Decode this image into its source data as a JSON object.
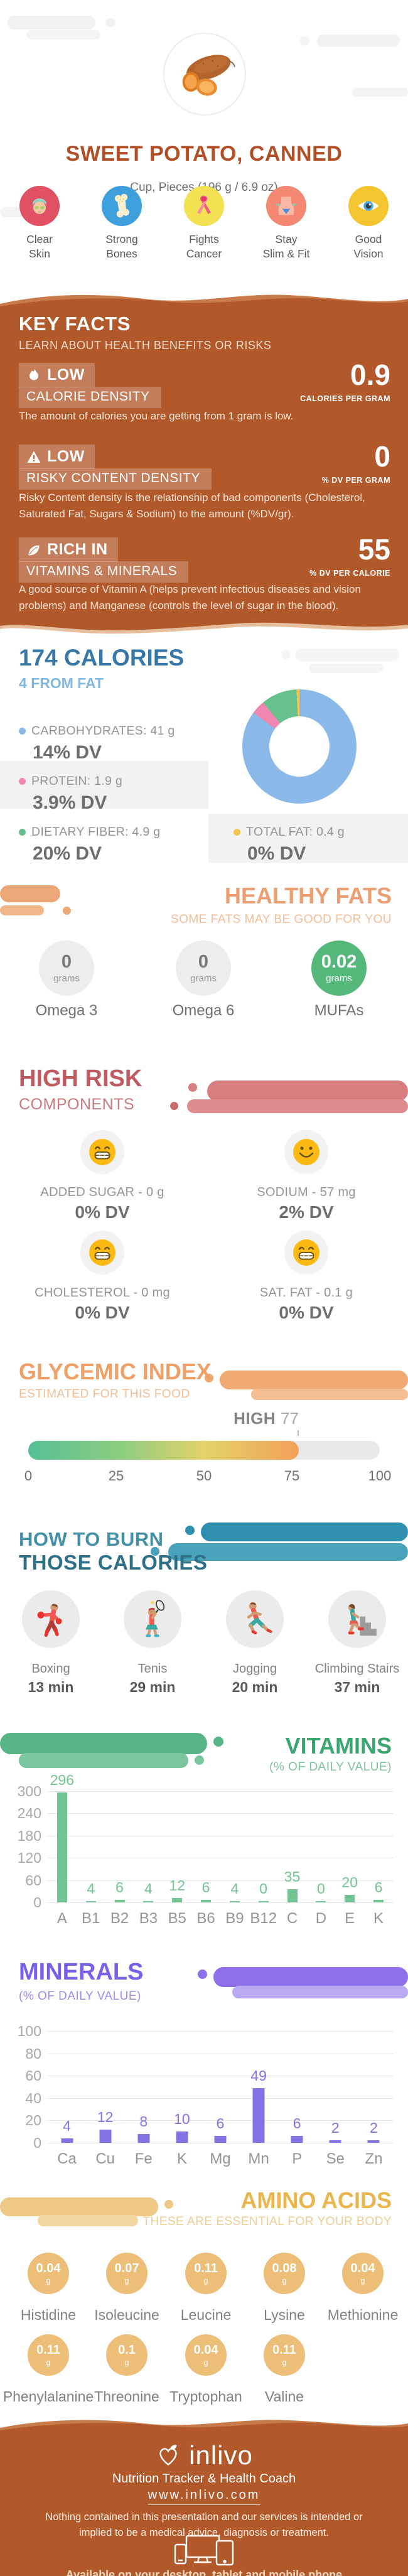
{
  "colors": {
    "brand_brown": "#b2592c",
    "brown_light": "#c87a4a",
    "title_brown": "#b34f27",
    "calories_blue": "#3878a8",
    "calories_blue_light": "#82b9e0",
    "carbs_blue": "#8ab8e8",
    "protein_pink": "#ef87b0",
    "fiber_green": "#67c18c",
    "fat_yellow": "#f3c64f",
    "healthy_fats_salmon": "#eb9e72",
    "mufa_green": "#56b77a",
    "high_risk_rose": "#bf5a62",
    "smiley_yellow": "#fdb913",
    "glycemic_orange": "#efa067",
    "burn_teal": "#2e7086",
    "vitamins_green": "#3aa771",
    "vitamins_bar_green": "#72c493",
    "minerals_purple": "#7a5fe8",
    "minerals_bar_purple": "#8273e4",
    "amino_gold": "#eab54d",
    "amino_bubble_gold": "#ecbe77"
  },
  "header": {
    "title": "SWEET POTATO, CANNED",
    "subtitle": "Cup, Pieces (196 g / 6.9 oz)",
    "benefits": [
      {
        "icon": "face-icon",
        "circle_color": "#e05263",
        "lines": [
          "Clear",
          "Skin"
        ]
      },
      {
        "icon": "bone-icon",
        "circle_color": "#3d9fdc",
        "lines": [
          "Strong",
          "Bones"
        ]
      },
      {
        "icon": "ribbon-icon",
        "circle_color": "#f2e153",
        "lines": [
          "Fights",
          "Cancer"
        ]
      },
      {
        "icon": "waist-icon",
        "circle_color": "#f48873",
        "lines": [
          "Stay",
          "Slim & Fit"
        ]
      },
      {
        "icon": "eye-icon",
        "circle_color": "#f5c531",
        "lines": [
          "Good",
          "Vision"
        ]
      }
    ]
  },
  "key_facts": {
    "title": "KEY FACTS",
    "subtitle": "LEARN ABOUT HEALTH BENEFITS OR RISKS",
    "facts": [
      {
        "icon": "flame-icon",
        "badge": "LOW",
        "category": "CALORIE DENSITY",
        "value": "0.9",
        "unit": "CALORIES PER GRAM",
        "description": "The amount of calories you are getting from 1 gram is low."
      },
      {
        "icon": "warning-icon",
        "badge": "LOW",
        "category": "RISKY CONTENT DENSITY",
        "value": "0",
        "unit": "% DV PER GRAM",
        "description": "Risky Content density is the relationship of bad components (Cholesterol, Saturated Fat, Sugars & Sodium) to the amount (%DV/gr)."
      },
      {
        "icon": "leaf-icon",
        "badge": "RICH IN",
        "category": "VITAMINS & MINERALS",
        "value": "55",
        "unit": "% DV PER CALORIE",
        "description": "A good source of Vitamin A (helps prevent infectious diseases and vision problems) and Manganese (controls the level of sugar in the blood)."
      }
    ]
  },
  "calories": {
    "title": "174 CALORIES",
    "subtitle": "4 FROM FAT",
    "macros": [
      {
        "label": "CARBOHYDRATES: 41 g",
        "dv": "14% DV",
        "color": "#8ab8e8"
      },
      {
        "label": "PROTEIN: 1.9 g",
        "dv": "3.9% DV",
        "color": "#ef87b0"
      },
      {
        "label": "DIETARY FIBER: 4.9 g",
        "dv": "20% DV",
        "color": "#67c18c"
      },
      {
        "label": "TOTAL FAT: 0.4 g",
        "dv": "0% DV",
        "color": "#f3c64f"
      }
    ]
  },
  "healthy_fats": {
    "title": "HEALTHY FATS",
    "subtitle": "SOME FATS MAY BE GOOD FOR YOU",
    "items": [
      {
        "value": "0",
        "unit": "grams",
        "label": "Omega 3",
        "highlight": false
      },
      {
        "value": "0",
        "unit": "grams",
        "label": "Omega 6",
        "highlight": false
      },
      {
        "value": "0.02",
        "unit": "grams",
        "label": "MUFAs",
        "highlight": true
      }
    ]
  },
  "high_risk": {
    "title": "HIGH RISK",
    "subtitle": "COMPONENTS",
    "items": [
      {
        "mood": "grin",
        "label": "ADDED SUGAR - 0 g",
        "dv": "0% DV"
      },
      {
        "mood": "smile",
        "label": "SODIUM - 57 mg",
        "dv": "2% DV"
      },
      {
        "mood": "grin",
        "label": "CHOLESTEROL - 0 mg",
        "dv": "0% DV"
      },
      {
        "mood": "grin",
        "label": "SAT. FAT - 0.1 g",
        "dv": "0% DV"
      }
    ]
  },
  "glycemic": {
    "title": "GLYCEMIC INDEX",
    "subtitle": "ESTIMATED FOR THIS FOOD",
    "level": "HIGH",
    "value": 77,
    "scale": [
      0,
      25,
      50,
      75,
      100
    ]
  },
  "burn": {
    "title_line1": "HOW TO BURN",
    "title_line2": "THOSE CALORIES",
    "activities": [
      {
        "icon": "boxing-icon",
        "label": "Boxing",
        "time": "13 min"
      },
      {
        "icon": "tennis-icon",
        "label": "Tenis",
        "time": "29 min"
      },
      {
        "icon": "jogging-icon",
        "label": "Jogging",
        "time": "20 min"
      },
      {
        "icon": "stairs-icon",
        "label": "Climbing Stairs",
        "time": "37 min"
      }
    ]
  },
  "vitamins": {
    "title": "VITAMINS",
    "subtitle": "(% OF DAILY VALUE)"
  },
  "minerals": {
    "title": "MINERALS",
    "subtitle": "(% OF DAILY VALUE)"
  },
  "amino_acids": {
    "title": "AMINO ACIDS",
    "subtitle": "THESE ARE ESSENTIAL FOR YOUR BODY",
    "items": [
      {
        "name": "Histidine",
        "value": "0.04",
        "unit": "g"
      },
      {
        "name": "Isoleucine",
        "value": "0.07",
        "unit": "g"
      },
      {
        "name": "Leucine",
        "value": "0.11",
        "unit": "g"
      },
      {
        "name": "Lysine",
        "value": "0.08",
        "unit": "g"
      },
      {
        "name": "Methionine",
        "value": "0.04",
        "unit": "g"
      },
      {
        "name": "Phenylalanine",
        "value": "0.11",
        "unit": "g"
      },
      {
        "name": "Threonine",
        "value": "0.1",
        "unit": "g"
      },
      {
        "name": "Tryptophan",
        "value": "0.04",
        "unit": "g"
      },
      {
        "name": "Valine",
        "value": "0.11",
        "unit": "g"
      }
    ]
  },
  "footer": {
    "brand": "inlivo",
    "tagline": "Nutrition Tracker & Health Coach",
    "url": "www.inlivo.com",
    "disclaimer": "Nothing contained in this presentation and our services is intended or implied to be a medical advice, diagnosis or treatment.",
    "availability": "Available on your desktop, tablet and mobile phone"
  },
  "chart_data": [
    {
      "id": "macros-donut",
      "type": "pie",
      "title": "174 CALORIES - macronutrient breakdown",
      "labels": [
        "Carbohydrates",
        "Protein",
        "Dietary Fiber",
        "Total Fat"
      ],
      "values_g": [
        41,
        1.9,
        4.9,
        0.4
      ],
      "dv_percent": [
        "14% DV",
        "3.9% DV",
        "20% DV",
        "0% DV"
      ],
      "colors": [
        "#8ab8e8",
        "#ef87b0",
        "#67c18c",
        "#f3c64f"
      ]
    },
    {
      "id": "glycemic-gauge",
      "type": "gauge",
      "title": "Glycemic Index",
      "label": "HIGH",
      "value": 77,
      "range": [
        0,
        100
      ],
      "ticks": [
        0,
        25,
        50,
        75,
        100
      ]
    },
    {
      "id": "vitamins-bar",
      "type": "bar",
      "title": "VITAMINS (% OF DAILY VALUE)",
      "categories": [
        "A",
        "B1",
        "B2",
        "B3",
        "B5",
        "B6",
        "B9",
        "B12",
        "C",
        "D",
        "E",
        "K"
      ],
      "values": [
        296,
        4,
        6,
        4,
        12,
        6,
        4,
        0,
        35,
        0,
        20,
        6
      ],
      "ylim": [
        0,
        300
      ],
      "yticks": [
        0,
        60,
        120,
        180,
        240,
        300
      ],
      "bar_color": "#72c493",
      "grid": true,
      "legend_position": "none"
    },
    {
      "id": "minerals-bar",
      "type": "bar",
      "title": "MINERALS (% OF DAILY VALUE)",
      "categories": [
        "Ca",
        "Cu",
        "Fe",
        "K",
        "Mg",
        "Mn",
        "P",
        "Se",
        "Zn"
      ],
      "values": [
        4,
        12,
        8,
        10,
        6,
        49,
        6,
        2,
        2
      ],
      "ylim": [
        0,
        100
      ],
      "yticks": [
        0,
        20,
        40,
        60,
        80,
        100
      ],
      "bar_color": "#8273e4",
      "grid": true,
      "legend_position": "none"
    }
  ]
}
